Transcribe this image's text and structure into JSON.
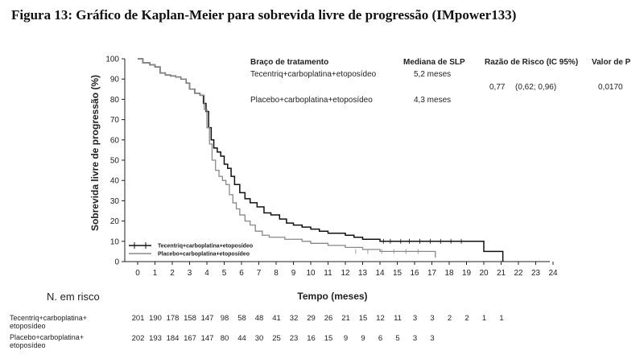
{
  "figure": {
    "title": "Figura 13: Gráfico de Kaplan-Meier para sobrevida livre de progressão (IMpower133)"
  },
  "chart_data": {
    "type": "line",
    "step": true,
    "xlabel": "Tempo (meses)",
    "ylabel": "Sobrevida livre de progressão (%)",
    "xlim": [
      0,
      24
    ],
    "ylim": [
      0,
      100
    ],
    "x_ticks": [
      "0",
      "1",
      "2",
      "3",
      "4",
      "5",
      "6",
      "7",
      "8",
      "9",
      "10",
      "11",
      "12",
      "13",
      "14",
      "15",
      "16",
      "17",
      "18",
      "19",
      "20",
      "21",
      "22",
      "23",
      "24"
    ],
    "y_ticks": [
      "0",
      "10",
      "20",
      "30",
      "40",
      "50",
      "60",
      "70",
      "80",
      "90",
      "100"
    ],
    "grid": false,
    "legend_position": "bottom-left",
    "series": [
      {
        "name": "Tecentriq+carboplatina+etoposídeo",
        "color": "#111111",
        "x": [
          0,
          0.3,
          0.7,
          1.0,
          1.3,
          1.6,
          1.9,
          2.2,
          2.5,
          2.8,
          3.0,
          3.3,
          3.6,
          3.8,
          3.95,
          4.1,
          4.25,
          4.4,
          4.6,
          4.8,
          5.0,
          5.2,
          5.4,
          5.6,
          5.9,
          6.2,
          6.5,
          6.9,
          7.3,
          7.7,
          8.2,
          8.6,
          9.0,
          9.5,
          10.0,
          10.5,
          11.0,
          11.5,
          12.0,
          12.5,
          13.0,
          14.0,
          15.0,
          16.0,
          17.0,
          18.0,
          19.0,
          19.5,
          20.0,
          21.0,
          21.1
        ],
        "y": [
          100,
          98,
          97,
          96,
          93,
          92,
          91.5,
          91,
          90,
          88,
          85,
          83,
          82,
          78,
          74,
          66,
          60,
          56,
          54,
          52,
          48,
          46,
          42,
          38,
          34,
          31,
          29,
          27,
          24,
          23,
          21,
          19,
          18,
          17,
          16,
          15,
          14,
          14,
          13,
          12,
          11,
          10,
          10,
          10,
          10,
          10,
          10,
          10,
          5,
          5,
          0
        ]
      },
      {
        "name": "Placebo+carboplatina+etoposídeo",
        "color": "#888888",
        "x": [
          0,
          0.3,
          0.7,
          1.0,
          1.3,
          1.6,
          1.9,
          2.2,
          2.5,
          2.8,
          3.0,
          3.3,
          3.6,
          3.85,
          4.0,
          4.15,
          4.3,
          4.5,
          4.7,
          4.9,
          5.1,
          5.3,
          5.5,
          5.7,
          5.9,
          6.2,
          6.5,
          6.8,
          7.2,
          7.6,
          8.0,
          8.5,
          9.0,
          9.5,
          10.0,
          11.0,
          12.0,
          13.0,
          14.0,
          15.0,
          16.0,
          17.0,
          17.2
        ],
        "y": [
          100,
          98,
          97,
          96,
          93,
          92,
          91.5,
          91,
          90,
          88,
          85,
          83,
          82,
          75,
          66,
          58,
          50,
          45,
          42,
          40,
          38,
          33,
          29,
          26,
          23,
          20,
          18,
          15,
          13,
          12,
          12,
          11,
          11,
          10,
          9,
          8,
          7,
          6,
          5,
          5,
          5,
          5,
          2
        ]
      }
    ],
    "table_header": {
      "arm": "Braço de tratamento",
      "median": "Mediana de SLP",
      "hr": "Razão de Risco (IC 95%)",
      "p": "Valor de P"
    },
    "table_rows": [
      {
        "arm": "Tecentriq+carboplatina+etoposídeo",
        "median": "5,2 meses"
      },
      {
        "arm": "Placebo+carboplatina+etoposídeo",
        "median": "4,3 meses"
      }
    ],
    "hazard_ratio": "0,77",
    "hazard_ci": "(0,62; 0,96)",
    "p_value": "0,0170",
    "legend": [
      "Tecentriq+carboplatina+etoposídeo",
      "Placebo+carboplatina+etoposídeo"
    ],
    "risk_table": {
      "title": "N. em risco",
      "rows": [
        {
          "label_line1": "Tecentriq+carboplatina+",
          "label_line2": "etoposídeo",
          "values": [
            "201",
            "190",
            "178",
            "158",
            "147",
            "98",
            "58",
            "48",
            "41",
            "32",
            "29",
            "26",
            "21",
            "15",
            "12",
            "11",
            "3",
            "3",
            "2",
            "2",
            "1",
            "1"
          ]
        },
        {
          "label_line1": "Placebo+carboplatina+",
          "label_line2": "etoposídeo",
          "values": [
            "202",
            "193",
            "184",
            "167",
            "147",
            "80",
            "44",
            "30",
            "25",
            "23",
            "16",
            "15",
            "9",
            "9",
            "6",
            "5",
            "3",
            "3"
          ]
        }
      ]
    }
  }
}
